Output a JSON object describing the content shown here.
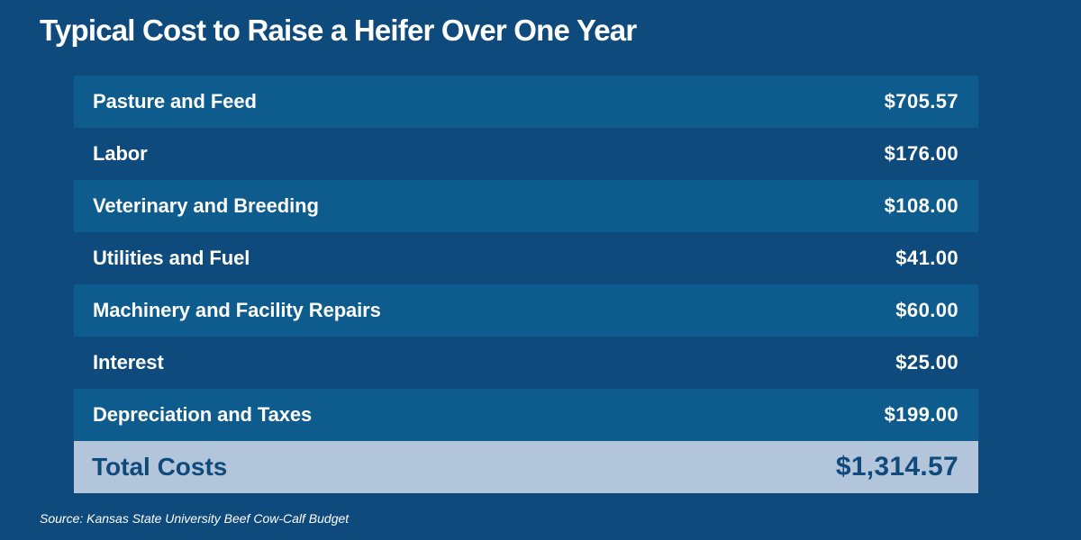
{
  "chart_data": {
    "type": "table",
    "title": "Typical Cost to Raise a Heifer Over One Year",
    "rows": [
      {
        "label": "Pasture and Feed",
        "value": "$705.57"
      },
      {
        "label": "Labor",
        "value": "$176.00"
      },
      {
        "label": "Veterinary and Breeding",
        "value": "$108.00"
      },
      {
        "label": "Utilities and Fuel",
        "value": "$41.00"
      },
      {
        "label": "Machinery and Facility Repairs",
        "value": "$60.00"
      },
      {
        "label": "Interest",
        "value": "$25.00"
      },
      {
        "label": "Depreciation and Taxes",
        "value": "$199.00"
      }
    ],
    "total": {
      "label": "Total Costs",
      "value": "$1,314.57"
    },
    "source": "Source: Kansas State University Beef Cow-Calf Budget"
  },
  "colors": {
    "background": "#0e4a7c",
    "row_stripe": "#0e5b8d",
    "total_row": "#b3c5da",
    "text": "#ffffff"
  }
}
